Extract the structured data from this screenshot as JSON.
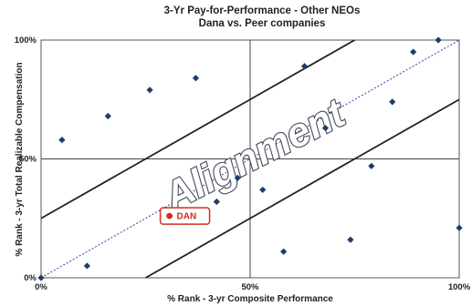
{
  "chart_data": {
    "type": "scatter",
    "title": "3-Yr Pay-for-Performance - Other NEOs",
    "subtitle": "Dana vs. Peer companies",
    "xlabel": "% Rank - 3-yr Composite Performance",
    "ylabel": "% Rank - 3-yr Total Realizable Compensation",
    "xlim": [
      0,
      100
    ],
    "ylim": [
      0,
      100
    ],
    "x_ticks": [
      "0%",
      "50%",
      "100%"
    ],
    "y_ticks": [
      "0%",
      "50%",
      "100%"
    ],
    "grid": false,
    "points": [
      {
        "x": 0,
        "y": 0
      },
      {
        "x": 5,
        "y": 58
      },
      {
        "x": 11,
        "y": 5
      },
      {
        "x": 16,
        "y": 68
      },
      {
        "x": 26,
        "y": 79
      },
      {
        "x": 37,
        "y": 84
      },
      {
        "x": 42,
        "y": 32
      },
      {
        "x": 47,
        "y": 42
      },
      {
        "x": 53,
        "y": 37
      },
      {
        "x": 58,
        "y": 11
      },
      {
        "x": 63,
        "y": 89
      },
      {
        "x": 68,
        "y": 63
      },
      {
        "x": 74,
        "y": 16
      },
      {
        "x": 79,
        "y": 47
      },
      {
        "x": 84,
        "y": 74
      },
      {
        "x": 89,
        "y": 95
      },
      {
        "x": 95,
        "y": 100
      },
      {
        "x": 100,
        "y": 21
      }
    ],
    "highlight": {
      "label": "DAN",
      "x": 32,
      "y": 26,
      "color": "#d52b1e"
    },
    "diagonal": {
      "from": [
        0,
        0
      ],
      "to": [
        100,
        100
      ],
      "style": "dashed",
      "color": "#3a3aa8"
    },
    "band_lines": [
      {
        "from": [
          0,
          25
        ],
        "to": [
          75,
          100
        ]
      },
      {
        "from": [
          25,
          0
        ],
        "to": [
          100,
          75
        ]
      }
    ],
    "reference_lines": {
      "x": 50,
      "y": 50
    },
    "annotation": "Alignment",
    "point_color": "#1f3a6b"
  }
}
